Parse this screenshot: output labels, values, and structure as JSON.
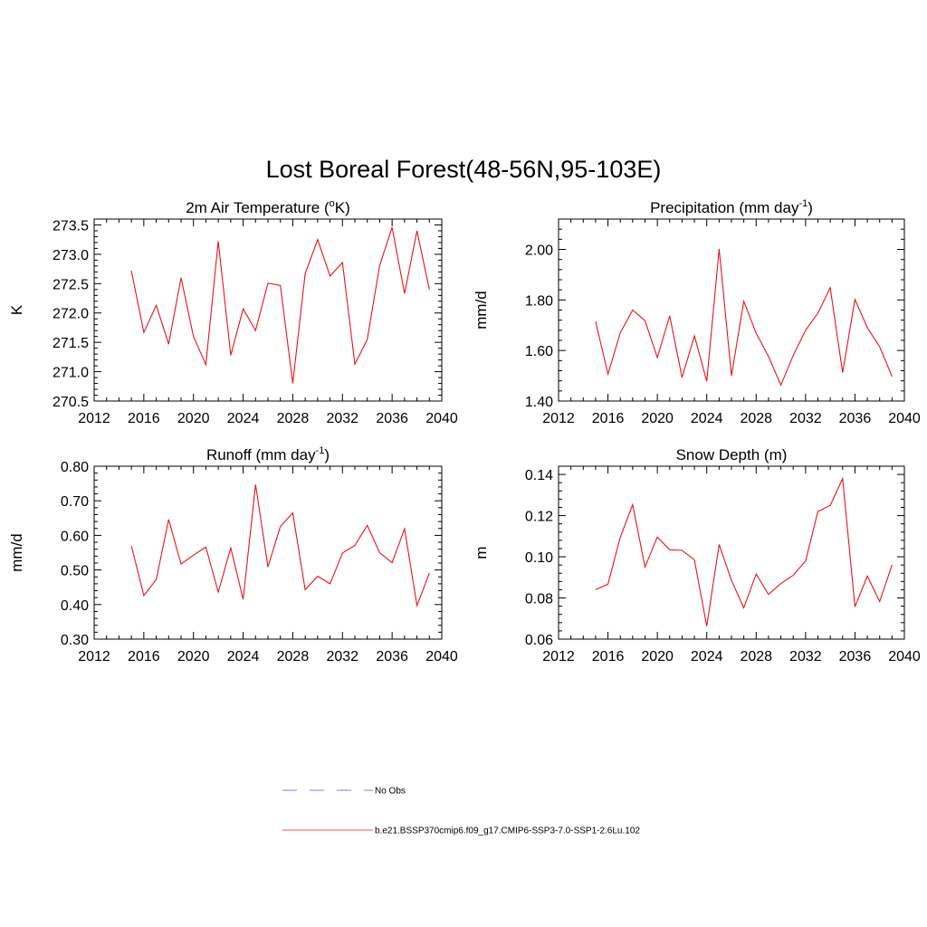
{
  "figure_title": "Lost Boreal Forest(48-56N,95-103E)",
  "chart_data": [
    {
      "type": "line",
      "title": "2m Air Temperature (",
      "title_sup": "o",
      "title_suffix": "K)",
      "ylabel": "K",
      "xlim": [
        2012,
        2040
      ],
      "xticks": [
        2012,
        2016,
        2020,
        2024,
        2028,
        2032,
        2036,
        2040
      ],
      "ylim": [
        270.5,
        273.6
      ],
      "yticks": [
        "270.5",
        "271.0",
        "271.5",
        "272.0",
        "272.5",
        "273.0",
        "273.5"
      ],
      "x": [
        2015,
        2016,
        2017,
        2018,
        2019,
        2020,
        2021,
        2022,
        2023,
        2024,
        2025,
        2026,
        2027,
        2028,
        2029,
        2030,
        2031,
        2032,
        2033,
        2034,
        2035,
        2036,
        2037,
        2038,
        2039
      ],
      "series": [
        {
          "color": "#e8141a",
          "values": [
            272.72,
            271.67,
            272.13,
            271.47,
            272.6,
            271.6,
            271.12,
            273.22,
            271.28,
            272.07,
            271.7,
            272.51,
            272.47,
            270.8,
            272.67,
            273.25,
            272.63,
            272.86,
            271.13,
            271.55,
            272.81,
            273.46,
            272.33,
            273.4,
            272.4
          ]
        }
      ]
    },
    {
      "type": "line",
      "title": "Precipitation (mm day",
      "title_sup": "-1",
      "title_suffix": ")",
      "ylabel": "mm/d",
      "xlim": [
        2012,
        2040
      ],
      "xticks": [
        2012,
        2016,
        2020,
        2024,
        2028,
        2032,
        2036,
        2040
      ],
      "ylim": [
        1.4,
        2.12
      ],
      "yticks": [
        "1.40",
        "1.60",
        "1.80",
        "2.00"
      ],
      "x": [
        2015,
        2016,
        2017,
        2018,
        2019,
        2020,
        2021,
        2022,
        2023,
        2024,
        2025,
        2026,
        2027,
        2028,
        2029,
        2030,
        2031,
        2032,
        2033,
        2034,
        2035,
        2036,
        2037,
        2038,
        2039
      ],
      "series": [
        {
          "color": "#e8141a",
          "values": [
            1.715,
            1.507,
            1.67,
            1.76,
            1.718,
            1.572,
            1.737,
            1.493,
            1.658,
            1.478,
            2.002,
            1.5,
            1.795,
            1.668,
            1.577,
            1.463,
            1.58,
            1.68,
            1.748,
            1.848,
            1.513,
            1.802,
            1.69,
            1.615,
            1.497
          ]
        }
      ]
    },
    {
      "type": "line",
      "title": "Runoff (mm day",
      "title_sup": "-1",
      "title_suffix": ")",
      "ylabel": "mm/d",
      "xlim": [
        2012,
        2040
      ],
      "xticks": [
        2012,
        2016,
        2020,
        2024,
        2028,
        2032,
        2036,
        2040
      ],
      "ylim": [
        0.3,
        0.8
      ],
      "yticks": [
        "0.30",
        "0.40",
        "0.50",
        "0.60",
        "0.70",
        "0.80"
      ],
      "x": [
        2015,
        2016,
        2017,
        2018,
        2019,
        2020,
        2021,
        2022,
        2023,
        2024,
        2025,
        2026,
        2027,
        2028,
        2029,
        2030,
        2031,
        2032,
        2033,
        2034,
        2035,
        2036,
        2037,
        2038,
        2039
      ],
      "series": [
        {
          "color": "#e8141a",
          "values": [
            0.57,
            0.426,
            0.472,
            0.646,
            0.517,
            0.543,
            0.566,
            0.436,
            0.564,
            0.415,
            0.747,
            0.509,
            0.626,
            0.665,
            0.443,
            0.482,
            0.46,
            0.549,
            0.571,
            0.629,
            0.55,
            0.521,
            0.619,
            0.397,
            0.491
          ]
        }
      ]
    },
    {
      "type": "line",
      "title": "Snow Depth (m)",
      "title_sup": "",
      "title_suffix": "",
      "ylabel": "m",
      "xlim": [
        2012,
        2040
      ],
      "xticks": [
        2012,
        2016,
        2020,
        2024,
        2028,
        2032,
        2036,
        2040
      ],
      "ylim": [
        0.06,
        0.144
      ],
      "yticks": [
        "0.06",
        "0.08",
        "0.10",
        "0.12",
        "0.14"
      ],
      "x": [
        2015,
        2016,
        2017,
        2018,
        2019,
        2020,
        2021,
        2022,
        2023,
        2024,
        2025,
        2026,
        2027,
        2028,
        2029,
        2030,
        2031,
        2032,
        2033,
        2034,
        2035,
        2036,
        2037,
        2038,
        2039
      ],
      "series": [
        {
          "color": "#e8141a",
          "values": [
            0.084,
            0.0867,
            0.1095,
            0.1253,
            0.095,
            0.1096,
            0.1034,
            0.1031,
            0.0985,
            0.0663,
            0.106,
            0.0885,
            0.0752,
            0.0916,
            0.0817,
            0.087,
            0.091,
            0.098,
            0.122,
            0.125,
            0.138,
            0.0757,
            0.0906,
            0.0783,
            0.096
          ]
        }
      ]
    }
  ],
  "legend": [
    {
      "label": "No Obs",
      "color": "#9a9ad6",
      "dashed": true
    },
    {
      "label": "b.e21.BSSP370cmip6.f09_g17.CMIP6-SSP3-7.0-SSP1-2.6Lu.102",
      "color": "#f07878",
      "dashed": false
    }
  ]
}
